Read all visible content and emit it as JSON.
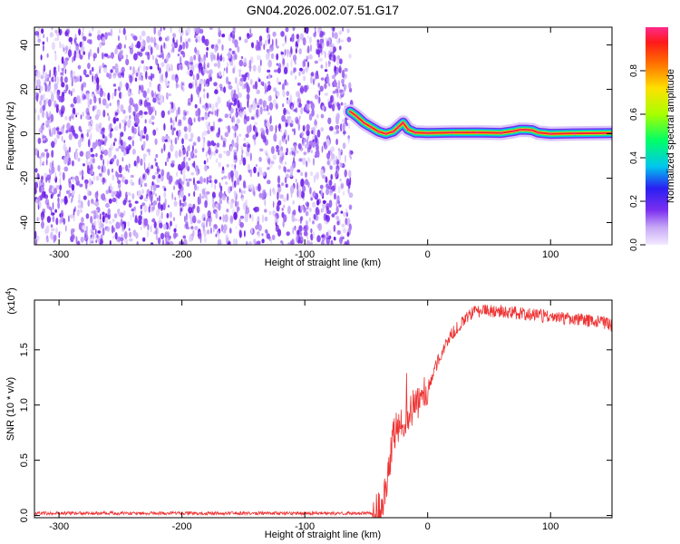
{
  "figure": {
    "title": "GN04.2026.002.07.51.G17"
  },
  "chart_data": [
    {
      "type": "heatmap",
      "xlabel": "Height of straight line (km)",
      "ylabel": "Frequency (Hz)",
      "xlim": [
        -320,
        150
      ],
      "ylim": [
        -50,
        48
      ],
      "xticks": [
        -300,
        -200,
        -100,
        0,
        100
      ],
      "yticks": [
        -40,
        -20,
        0,
        20,
        40
      ],
      "noise_region_x": [
        -320,
        -62
      ],
      "signal_trace": {
        "x": [
          -63,
          -58,
          -52,
          -46,
          -40,
          -34,
          -28,
          -24,
          -20,
          -16,
          -10,
          0,
          20,
          40,
          60,
          70,
          75,
          80,
          85,
          90,
          100,
          120,
          150
        ],
        "y": [
          10,
          8,
          5,
          3,
          1,
          0,
          1,
          3,
          5,
          2,
          0.5,
          0.3,
          0.5,
          0.6,
          0.4,
          1.2,
          1.8,
          1.8,
          1.6,
          0.5,
          0,
          0.2,
          0.3
        ]
      },
      "colorbar": {
        "label": "Normalized spectral amplitude",
        "range": [
          0,
          1
        ],
        "ticks": [
          "0.0",
          "0.2",
          "0.4",
          "0.6",
          "0.8"
        ]
      }
    },
    {
      "type": "line",
      "xlabel": "Height of straight line (km)",
      "ylabel": "SNR (10 * v/v)",
      "scale_label": "(x10",
      "scale_exp": "4",
      "scale_close": ")",
      "xlim": [
        -320,
        150
      ],
      "ylim": [
        -0.02,
        1.95
      ],
      "xticks": [
        -300,
        -200,
        -100,
        0,
        100
      ],
      "yticks": [
        "0.0",
        "0.5",
        "1.0",
        "1.5"
      ],
      "color": "#ee3333",
      "series": [
        {
          "x": [
            -320,
            -100,
            -45,
            -40,
            -37,
            -34,
            -32,
            -30,
            -28,
            -25,
            -22,
            -18,
            -14,
            -10,
            -6,
            -3,
            0,
            10,
            20,
            30,
            40,
            50,
            60,
            80,
            100,
            120,
            140,
            150
          ],
          "y": [
            0.02,
            0.02,
            0.02,
            0.05,
            0.1,
            0.25,
            0.4,
            0.55,
            0.7,
            0.8,
            0.85,
            0.88,
            0.95,
            1.0,
            1.05,
            1.1,
            1.15,
            1.45,
            1.65,
            1.78,
            1.85,
            1.85,
            1.85,
            1.82,
            1.8,
            1.78,
            1.75,
            1.72
          ]
        }
      ]
    }
  ]
}
